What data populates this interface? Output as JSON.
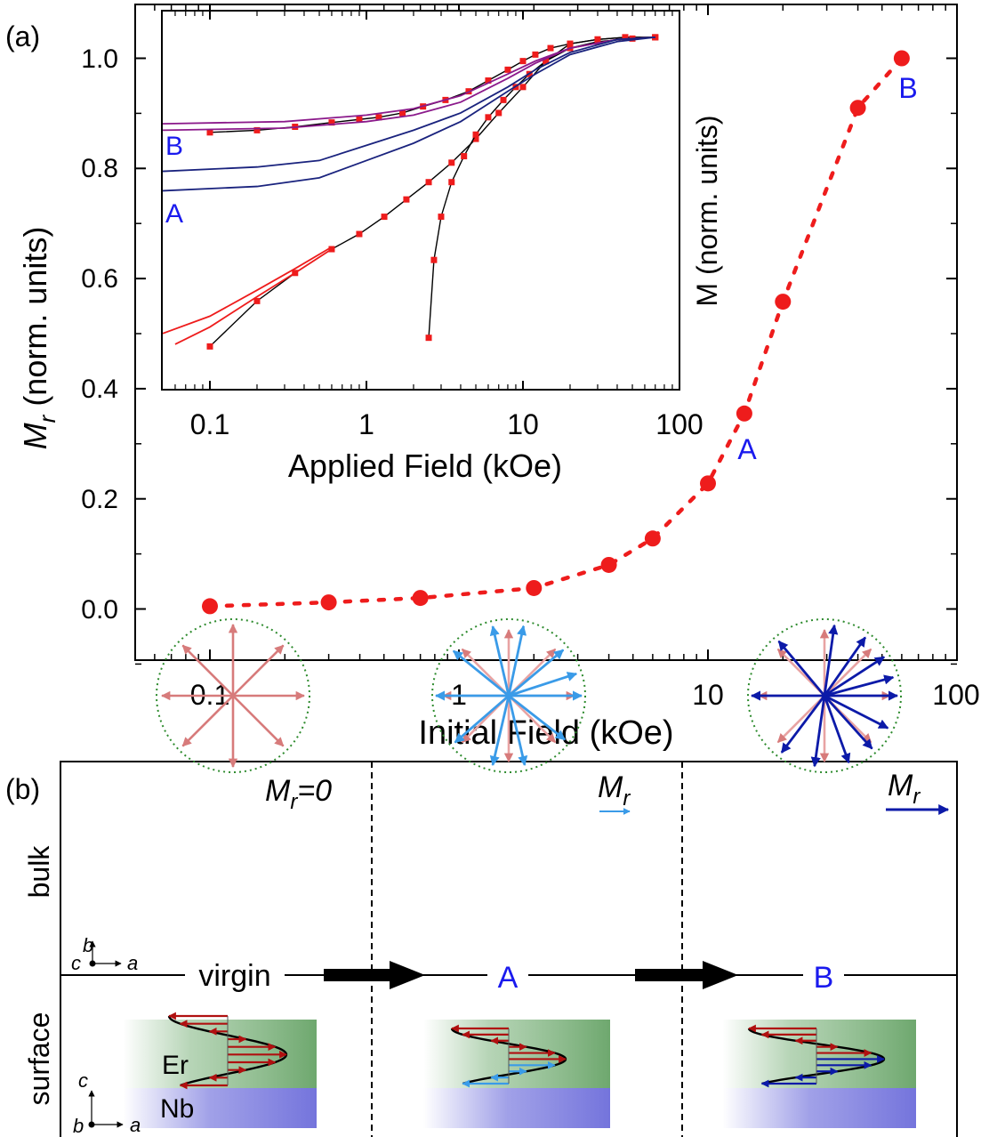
{
  "panel_a": {
    "label": "(a)",
    "xlabel": "Initial Field (kOe)",
    "ylabel_main": "M",
    "ylabel_sub": "r",
    "ylabel_rest": " (norm. units)",
    "x_tick_labels": [
      "0.1",
      "1",
      "10",
      "100"
    ],
    "y_tick_labels": [
      "0.0",
      "0.2",
      "0.4",
      "0.6",
      "0.8",
      "1.0"
    ],
    "point_labels": {
      "A": "A",
      "B": "B"
    },
    "inset": {
      "xlabel": "Applied Field (kOe)",
      "ylabel": "M (norm. units)",
      "x_tick_labels": [
        "0.1",
        "1",
        "10",
        "100"
      ],
      "curve_labels": {
        "A": "A",
        "B": "B"
      }
    }
  },
  "panel_b": {
    "label": "(b)",
    "row_labels": {
      "bulk": "bulk",
      "surface": "surface"
    },
    "states": [
      "virgin",
      "A",
      "B"
    ],
    "mr_zero_main": "M",
    "mr_zero_sub": "r",
    "mr_zero_rest": "=0",
    "mr_main": "M",
    "mr_sub": "r",
    "axes_bulk": {
      "b": "b",
      "c": "c",
      "a": "a"
    },
    "axes_surface": {
      "c": "c",
      "b": "b",
      "a": "a"
    },
    "layers": {
      "er": "Er",
      "nb": "Nb"
    }
  },
  "colors": {
    "data_red": "#ee1c1c",
    "label_blue": "#1a1aee",
    "arrow_pink": "#d77b7b",
    "arrow_light_blue": "#3a9be8",
    "arrow_dark_blue": "#0c1aa8",
    "inset_navy": "#1a237e",
    "inset_purple": "#8b1a8b",
    "er_green": "#7bb27b",
    "nb_blue": "#8181e0",
    "circle_green": "#2e8b2e"
  },
  "chart_data": [
    {
      "type": "scatter",
      "x_scale": "log",
      "xlim": [
        0.05,
        100
      ],
      "ylim": [
        -0.1,
        1.08
      ],
      "x": [
        0.1,
        0.3,
        0.7,
        2,
        4,
        6,
        10,
        14,
        20,
        40,
        60
      ],
      "y": [
        0.005,
        0.012,
        0.02,
        0.038,
        0.08,
        0.128,
        0.228,
        0.355,
        0.558,
        0.91,
        1.0
      ],
      "marker_color": "#ee1c1c",
      "line_style": "dotted"
    },
    {
      "type": "line",
      "x_scale": "log",
      "xlim": [
        0.05,
        70
      ],
      "ylim": [
        0.2,
        1.05
      ],
      "series": [
        {
          "color": "#ee1c1c",
          "markers": true,
          "x": [
            0.1,
            0.2,
            0.35,
            0.6,
            0.9,
            1.2,
            1.7,
            2.3,
            3.2,
            4.5,
            6,
            8,
            10,
            12,
            15,
            20,
            30,
            45,
            70
          ],
          "y": [
            0.795,
            0.8,
            0.808,
            0.818,
            0.825,
            0.83,
            0.84,
            0.855,
            0.87,
            0.89,
            0.915,
            0.94,
            0.96,
            0.975,
            0.99,
            1.0,
            1.01,
            1.015,
            1.015
          ]
        },
        {
          "color": "#ee1c1c",
          "markers": true,
          "x": [
            0.1,
            0.2,
            0.35,
            0.6,
            0.9,
            1.3,
            1.8,
            2.5,
            3.5,
            5,
            7,
            10,
            14,
            20,
            30,
            45,
            70
          ],
          "y": [
            0.3,
            0.405,
            0.47,
            0.525,
            0.56,
            0.6,
            0.64,
            0.68,
            0.725,
            0.78,
            0.84,
            0.9,
            0.96,
            1.0,
            1.01,
            1.015,
            1.015
          ]
        },
        {
          "color": "#ee1c1c",
          "markers": true,
          "x": [
            2.5,
            2.7,
            3.0,
            3.5,
            4.2,
            5,
            6,
            7.5,
            9,
            11,
            14,
            20,
            30,
            50,
            70
          ],
          "y": [
            0.32,
            0.5,
            0.6,
            0.68,
            0.74,
            0.79,
            0.83,
            0.87,
            0.9,
            0.93,
            0.96,
            0.99,
            1.005,
            1.012,
            1.015
          ]
        },
        {
          "color": "#8b1a8b",
          "markers": false,
          "x": [
            0.05,
            0.3,
            1,
            2,
            4,
            8,
            12,
            20,
            40,
            70
          ],
          "y": [
            0.815,
            0.82,
            0.835,
            0.85,
            0.88,
            0.93,
            0.96,
            0.99,
            1.01,
            1.015
          ]
        },
        {
          "color": "#8b1a8b",
          "markers": false,
          "x": [
            0.05,
            0.3,
            1,
            2,
            4,
            8,
            12,
            20,
            40,
            70
          ],
          "y": [
            0.8,
            0.805,
            0.82,
            0.835,
            0.865,
            0.92,
            0.955,
            0.99,
            1.01,
            1.015
          ]
        },
        {
          "color": "#1a237e",
          "markers": false,
          "x": [
            0.05,
            0.2,
            0.5,
            1,
            2,
            4,
            8,
            12,
            20,
            40,
            70
          ],
          "y": [
            0.705,
            0.715,
            0.73,
            0.765,
            0.8,
            0.84,
            0.9,
            0.94,
            0.98,
            1.01,
            1.015
          ]
        },
        {
          "color": "#1a237e",
          "markers": false,
          "x": [
            0.05,
            0.2,
            0.5,
            1,
            2,
            4,
            8,
            12,
            20,
            40,
            70
          ],
          "y": [
            0.66,
            0.67,
            0.69,
            0.73,
            0.77,
            0.82,
            0.89,
            0.93,
            0.975,
            1.005,
            1.015
          ]
        },
        {
          "color": "#ee1c1c",
          "markers": false,
          "x": [
            0.05,
            0.1,
            0.2,
            0.35,
            0.6
          ],
          "y": [
            0.33,
            0.37,
            0.43,
            0.48,
            0.53
          ]
        },
        {
          "color": "#ee1c1c",
          "markers": false,
          "x": [
            0.06,
            0.1,
            0.2,
            0.35,
            0.6
          ],
          "y": [
            0.305,
            0.345,
            0.415,
            0.47,
            0.525
          ]
        }
      ]
    }
  ]
}
